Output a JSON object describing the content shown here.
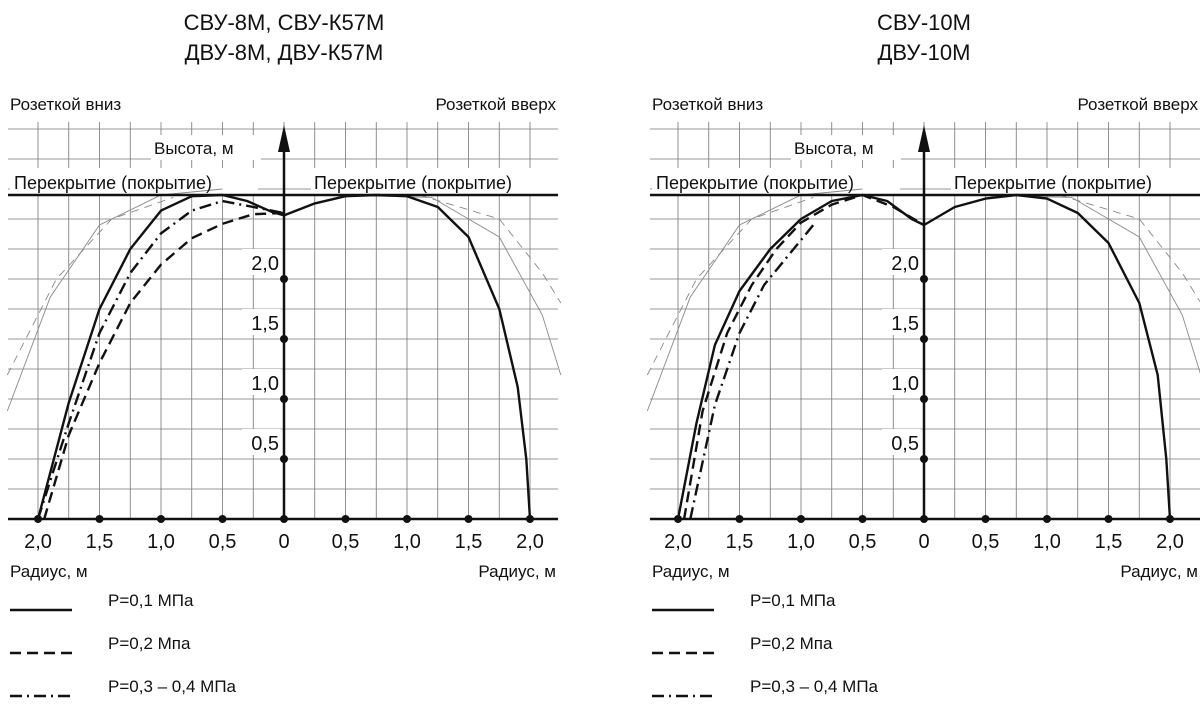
{
  "chart_data": [
    {
      "type": "line",
      "title_lines": [
        "СВУ-8М, СВУ-К57М",
        "ДВУ-8М, ДВУ-К57М"
      ],
      "left_label": "Розеткой вниз",
      "right_label": "Розеткой вверх",
      "ylabel": "Высота, м",
      "ceiling_left": "Перекрытие (покрытие)",
      "ceiling_right": "Перекрытие (покрытие)",
      "xlabel_left": "Радиус, м",
      "xlabel_right": "Радиус, м",
      "x_tick_labels": [
        "2,0",
        "1,5",
        "1,0",
        "0,5",
        "0",
        "0,5",
        "1,0",
        "1,5",
        "2,0"
      ],
      "x_tick_values": [
        -2.0,
        -1.5,
        -1.0,
        -0.5,
        0,
        0.5,
        1.0,
        1.5,
        2.0
      ],
      "y_tick_labels": [
        "0,5",
        "1,0",
        "1,5",
        "2,0"
      ],
      "y_tick_values": [
        0.5,
        1.0,
        1.5,
        2.0
      ],
      "xlim": [
        -2.25,
        2.25
      ],
      "ylim": [
        0,
        3.3
      ],
      "ceiling_height": 2.7,
      "grid": true,
      "series": [
        {
          "name": "P=0,1 МПа",
          "style": "solid",
          "x": [
            -2.0,
            -1.75,
            -1.5,
            -1.25,
            -1.0,
            -0.75,
            -0.5,
            -0.3,
            -0.1,
            0,
            0.25,
            0.5,
            0.75,
            1.0,
            1.25,
            1.5,
            1.75,
            1.9,
            1.97,
            2.0
          ],
          "y": [
            0,
            0.97,
            1.75,
            2.25,
            2.57,
            2.69,
            2.7,
            2.65,
            2.56,
            2.53,
            2.63,
            2.69,
            2.7,
            2.69,
            2.6,
            2.35,
            1.75,
            1.1,
            0.5,
            0
          ]
        },
        {
          "name": "P=0,2 Мпа",
          "style": "dashed",
          "x": [
            -1.95,
            -1.75,
            -1.5,
            -1.25,
            -1.0,
            -0.75,
            -0.5,
            -0.25,
            0
          ],
          "y": [
            0,
            0.7,
            1.3,
            1.8,
            2.12,
            2.34,
            2.46,
            2.54,
            2.55
          ]
        },
        {
          "name": "P=0,3 – 0,4 МПа",
          "style": "dashdot",
          "x": [
            -2.0,
            -1.75,
            -1.5,
            -1.25,
            -1.0,
            -0.75,
            -0.5,
            -0.25,
            0
          ],
          "y": [
            0,
            0.8,
            1.55,
            2.05,
            2.38,
            2.57,
            2.65,
            2.6,
            2.55
          ]
        }
      ],
      "legend": [
        "P=0,1 МПа",
        "P=0,2 Мпа",
        "P=0,3 – 0,4 МПа"
      ]
    },
    {
      "type": "line",
      "title_lines": [
        "СВУ-10М",
        "ДВУ-10М"
      ],
      "left_label": "Розеткой вниз",
      "right_label": "Розеткой вверх",
      "ylabel": "Высота, м",
      "ceiling_left": "Перекрытие (покрытие)",
      "ceiling_right": "Перекрытие (покрытие)",
      "xlabel_left": "Радиус, м",
      "xlabel_right": "Радиус, м",
      "x_tick_labels": [
        "2,0",
        "1,5",
        "1,0",
        "0,5",
        "0",
        "0,5",
        "1,0",
        "1,5",
        "2,0"
      ],
      "x_tick_values": [
        -2.0,
        -1.5,
        -1.0,
        -0.5,
        0,
        0.5,
        1.0,
        1.5,
        2.0
      ],
      "y_tick_labels": [
        "0,5",
        "1,0",
        "1,5",
        "2,0"
      ],
      "y_tick_values": [
        0.5,
        1.0,
        1.5,
        2.0
      ],
      "xlim": [
        -2.25,
        2.25
      ],
      "ylim": [
        0,
        3.3
      ],
      "ceiling_height": 2.7,
      "grid": true,
      "series": [
        {
          "name": "P=0,1 МПа",
          "style": "solid",
          "x": [
            -2.0,
            -1.85,
            -1.7,
            -1.5,
            -1.25,
            -1.0,
            -0.75,
            -0.5,
            -0.3,
            -0.1,
            0,
            0.25,
            0.5,
            0.75,
            1.0,
            1.25,
            1.5,
            1.75,
            1.9,
            1.97,
            2.0
          ],
          "y": [
            0,
            0.8,
            1.45,
            1.9,
            2.25,
            2.5,
            2.65,
            2.7,
            2.65,
            2.5,
            2.45,
            2.6,
            2.67,
            2.7,
            2.67,
            2.55,
            2.3,
            1.8,
            1.2,
            0.5,
            0
          ]
        },
        {
          "name": "P=0,2 Мпа",
          "style": "dashed",
          "x": [
            -1.95,
            -1.8,
            -1.6,
            -1.4,
            -1.2,
            -1.0,
            -0.75,
            -0.5,
            -0.25,
            0
          ],
          "y": [
            0,
            0.9,
            1.55,
            1.95,
            2.25,
            2.47,
            2.62,
            2.7,
            2.6,
            2.45
          ]
        },
        {
          "name": "P=0,3 – 0,4 МПа",
          "style": "dashdot",
          "x": [
            -1.9,
            -1.7,
            -1.5,
            -1.3,
            -1.1,
            -0.9
          ],
          "y": [
            0,
            0.95,
            1.55,
            1.95,
            2.2,
            2.45
          ]
        }
      ],
      "legend": [
        "P=0,1 МПа",
        "P=0,2 Мпа",
        "P=0,3 – 0,4 МПа"
      ]
    }
  ]
}
